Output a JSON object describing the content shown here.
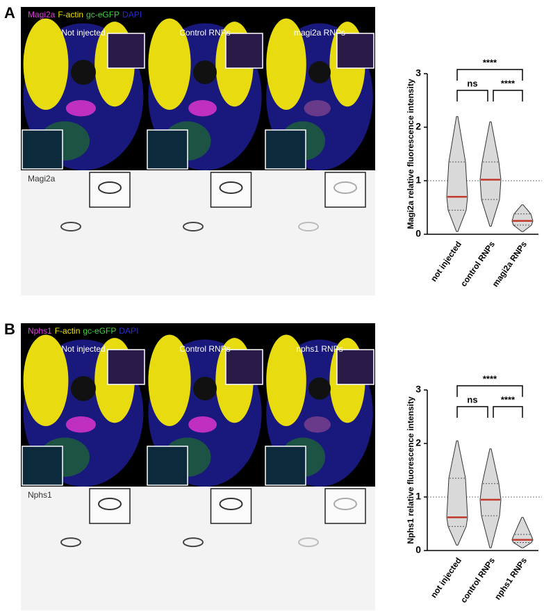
{
  "panels": [
    {
      "letter": "A",
      "stains": [
        {
          "name": "Magi2a",
          "color": "#e03ce0"
        },
        {
          "name": "F-actin",
          "color": "#f2e600"
        },
        {
          "name": "gc-eGFP",
          "color": "#3fd23f"
        },
        {
          "name": "DAPI",
          "color": "#2a2ad8"
        }
      ],
      "image_titles": [
        "Not injected",
        "Control RNPs",
        "magi2a RNPs"
      ],
      "gray_label": "Magi2a"
    },
    {
      "letter": "B",
      "stains": [
        {
          "name": "Nphs1",
          "color": "#e03ce0"
        },
        {
          "name": "F-actin",
          "color": "#f2e600"
        },
        {
          "name": "gc-eGFP",
          "color": "#3fd23f"
        },
        {
          "name": "DAPI",
          "color": "#2a2ad8"
        }
      ],
      "image_titles": [
        "Not injected",
        "Control RNPs",
        "nphs1 RNPs"
      ],
      "gray_label": "Nphs1"
    }
  ],
  "chart_data": [
    {
      "type": "violin",
      "y_label": "Magi2a relative fluorescence intensity",
      "categories": [
        "not injected",
        "control RNPs",
        "magi2a RNPs"
      ],
      "min": [
        0.05,
        0.15,
        0.05
      ],
      "q1": [
        0.45,
        0.65,
        0.17
      ],
      "median": [
        0.7,
        1.02,
        0.25
      ],
      "q3": [
        1.35,
        1.35,
        0.38
      ],
      "max": [
        2.2,
        2.1,
        0.55
      ],
      "ylim": [
        0,
        3
      ],
      "yticks": [
        0,
        1,
        2,
        3
      ],
      "reference_line": 1,
      "annotations": [
        "****",
        "ns",
        "****"
      ],
      "median_color": "#c0392b",
      "violin_color": "#d9d9d9"
    },
    {
      "type": "violin",
      "y_label": "Nphs1 relative fluorescence intensity",
      "categories": [
        "not injected",
        "control RNPs",
        "nphs1 RNPs"
      ],
      "min": [
        0.1,
        0.05,
        0.05
      ],
      "q1": [
        0.45,
        0.65,
        0.15
      ],
      "median": [
        0.62,
        0.95,
        0.2
      ],
      "q3": [
        1.35,
        1.25,
        0.3
      ],
      "max": [
        2.05,
        1.9,
        0.62
      ],
      "ylim": [
        0,
        3
      ],
      "yticks": [
        0,
        1,
        2,
        3
      ],
      "reference_line": 1,
      "annotations": [
        "****",
        "ns",
        "****"
      ],
      "median_color": "#c0392b",
      "violin_color": "#d9d9d9"
    }
  ]
}
